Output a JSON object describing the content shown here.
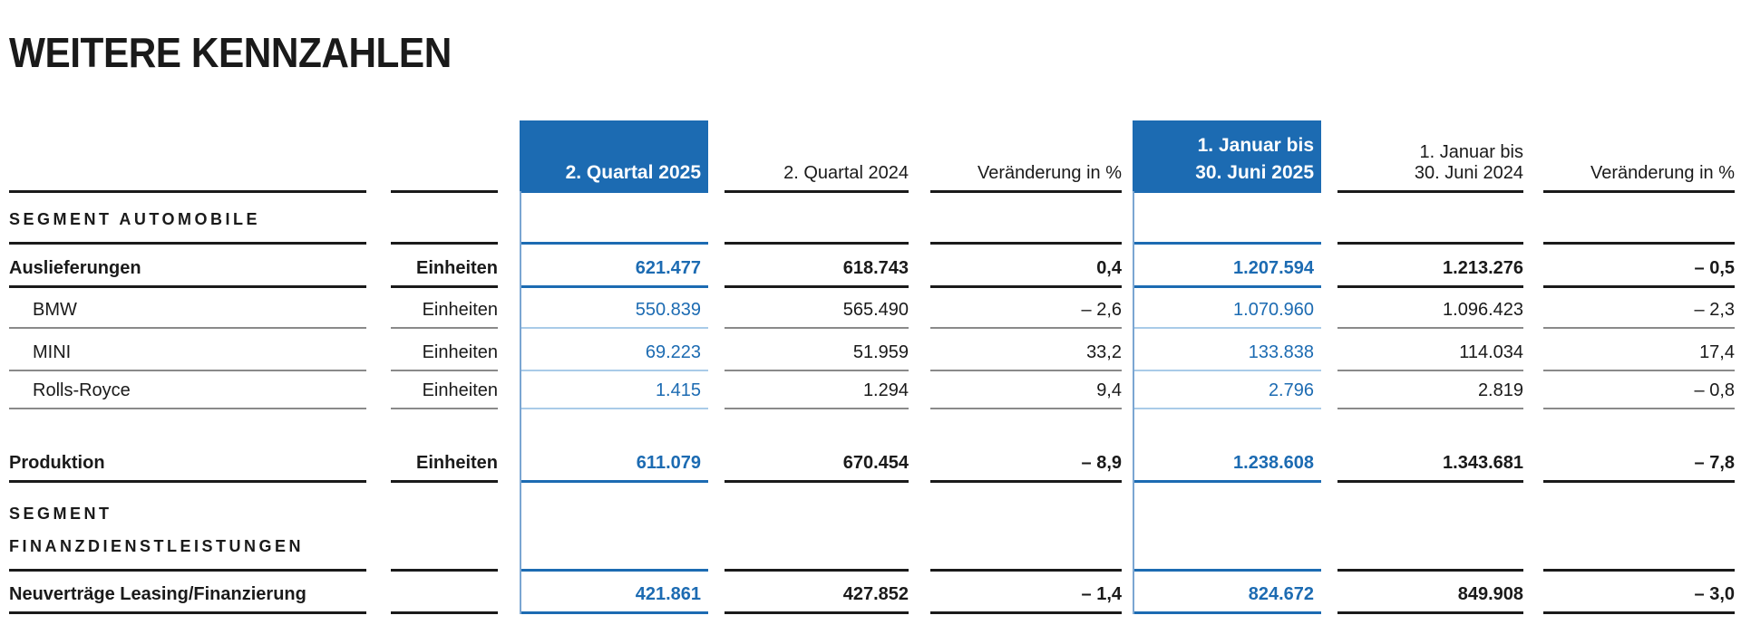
{
  "page": {
    "title": "WEITERE KENNZAHLEN"
  },
  "colors": {
    "accent_blue": "#1c6bb2",
    "light_blue_line": "#a9cbe8",
    "gray_line": "#8a8a8a",
    "text_black": "#1a1a1a"
  },
  "table": {
    "columns": {
      "q2_2025": "2. Quartal 2025",
      "q2_2024": "2. Quartal 2024",
      "change_quarter": "Veränderung in %",
      "h1_2025_line1": "1. Januar bis",
      "h1_2025_line2": "30. Juni 2025",
      "h1_2024_line1": "1. Januar bis",
      "h1_2024_line2": "30. Juni 2024",
      "change_half": "Veränderung in %"
    },
    "section_automobile": {
      "title": "SEGMENT AUTOMOBILE"
    },
    "section_financial": {
      "title_line1": "SEGMENT",
      "title_line2": "FINANZDIENSTLEISTUNGEN"
    },
    "rows": [
      {
        "label": "Auslieferungen",
        "unit": "Einheiten",
        "q2_2025": "621.477",
        "q2_2024": "618.743",
        "change_quarter": "0,4",
        "h1_2025": "1.207.594",
        "h1_2024": "1.213.276",
        "change_half": "– 0,5"
      },
      {
        "label": "BMW",
        "unit": "Einheiten",
        "q2_2025": "550.839",
        "q2_2024": "565.490",
        "change_quarter": "– 2,6",
        "h1_2025": "1.070.960",
        "h1_2024": "1.096.423",
        "change_half": "– 2,3"
      },
      {
        "label": "MINI",
        "unit": "Einheiten",
        "q2_2025": "69.223",
        "q2_2024": "51.959",
        "change_quarter": "33,2",
        "h1_2025": "133.838",
        "h1_2024": "114.034",
        "change_half": "17,4"
      },
      {
        "label": "Rolls-Royce",
        "unit": "Einheiten",
        "q2_2025": "1.415",
        "q2_2024": "1.294",
        "change_quarter": "9,4",
        "h1_2025": "2.796",
        "h1_2024": "2.819",
        "change_half": "– 0,8"
      },
      {
        "label": "Produktion",
        "unit": "Einheiten",
        "q2_2025": "611.079",
        "q2_2024": "670.454",
        "change_quarter": "– 8,9",
        "h1_2025": "1.238.608",
        "h1_2024": "1.343.681",
        "change_half": "– 7,8"
      },
      {
        "label": "Neuverträge Leasing/Finanzierung",
        "unit": "",
        "q2_2025": "421.861",
        "q2_2024": "427.852",
        "change_quarter": "– 1,4",
        "h1_2025": "824.672",
        "h1_2024": "849.908",
        "change_half": "– 3,0"
      }
    ]
  }
}
